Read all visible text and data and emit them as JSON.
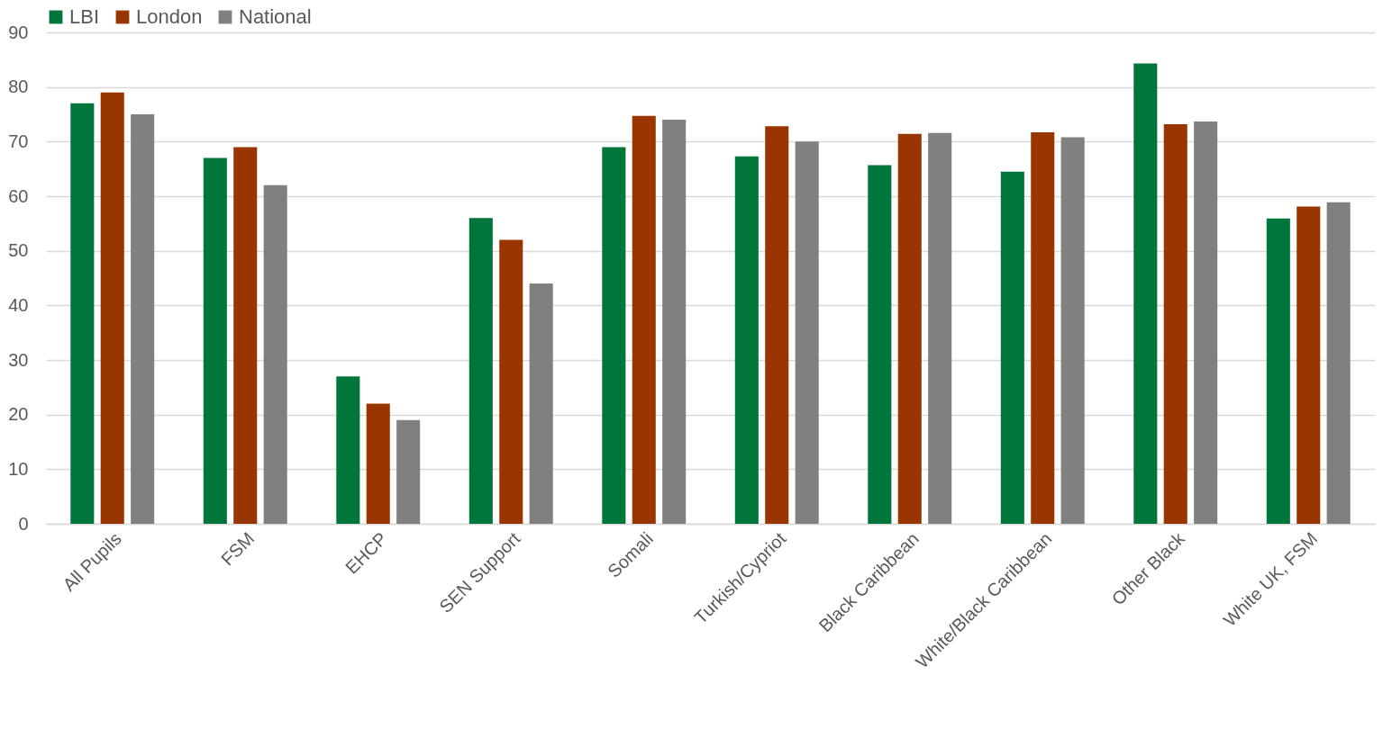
{
  "chart_data": {
    "type": "bar",
    "categories": [
      "All Pupils",
      "FSM",
      "EHCP",
      "SEN Support",
      "Somali",
      "Turkish/Cypriot",
      "Black Caribbean",
      "White/Black Caribbean",
      "Other Black",
      "White UK, FSM"
    ],
    "series": [
      {
        "name": "LBI",
        "color": "#00763a",
        "values": [
          77,
          67,
          27,
          56,
          69,
          67.3,
          65.7,
          64.5,
          84.3,
          55.9
        ]
      },
      {
        "name": "London",
        "color": "#993600",
        "values": [
          79,
          69,
          22,
          52,
          74.7,
          72.8,
          71.4,
          71.7,
          73.2,
          58.1
        ]
      },
      {
        "name": "National",
        "color": "#808080",
        "values": [
          75,
          62,
          19,
          44,
          74,
          70,
          71.6,
          70.8,
          73.7,
          58.9
        ]
      }
    ],
    "ylim": [
      0,
      90
    ],
    "yticks": [
      0,
      10,
      20,
      30,
      40,
      50,
      60,
      70,
      80,
      90
    ],
    "grid": "y",
    "legend": "top"
  }
}
